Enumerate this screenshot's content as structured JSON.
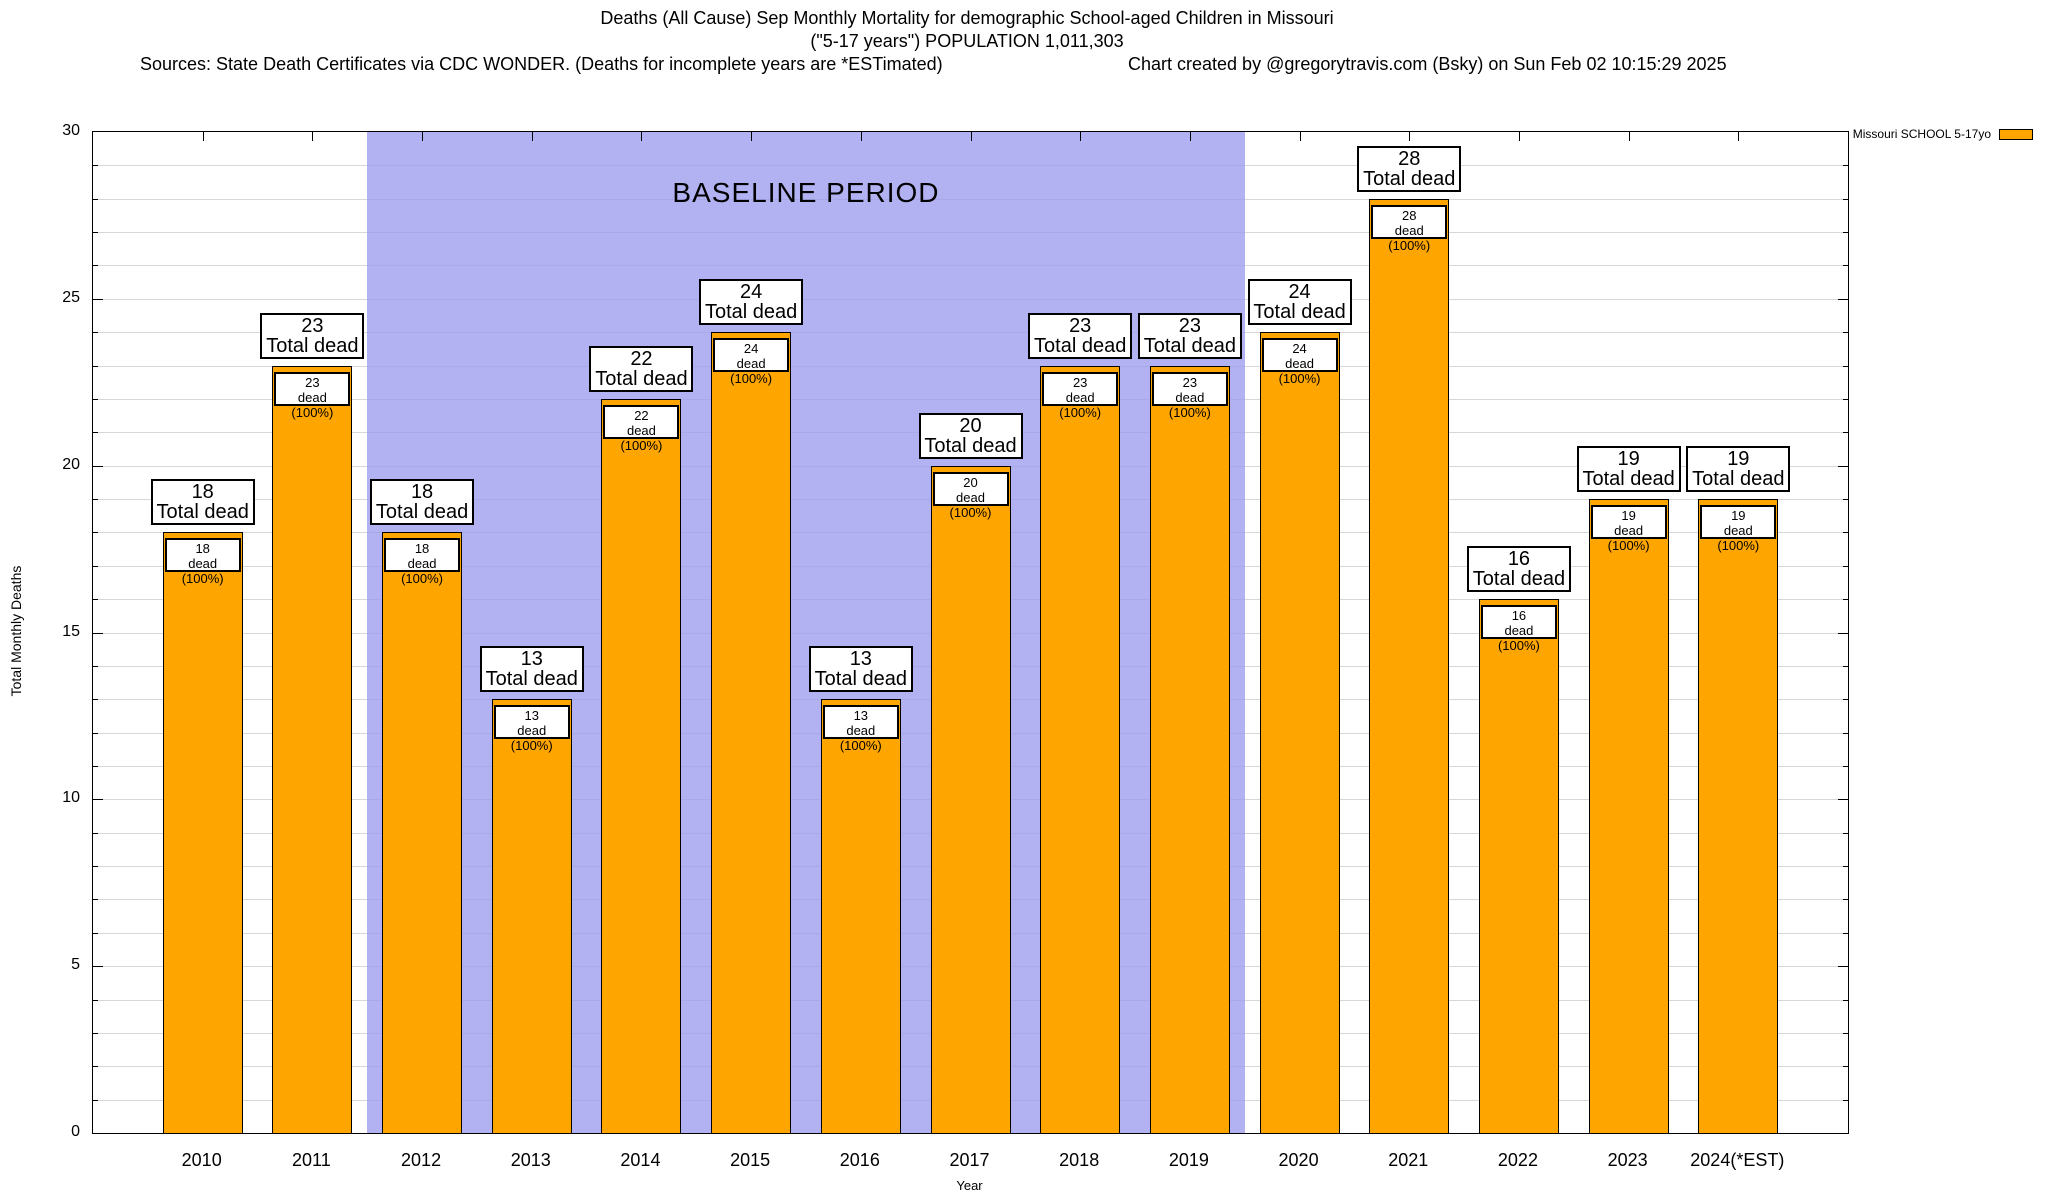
{
  "header": {
    "title_line1": "Deaths (All Cause) Sep Monthly Mortality for demographic School-aged Children in Missouri",
    "title_line2": "(\"5-17 years\") POPULATION 1,011,303",
    "sources": "Sources: State Death Certificates via CDC WONDER. (Deaths for incomplete years are *ESTimated)",
    "credit": "Chart created by @gregorytravis.com (Bsky) on Sun Feb 02 10:15:29 2025"
  },
  "legend": {
    "label": "Missouri SCHOOL 5-17yo",
    "position": "top-right"
  },
  "chart_data": {
    "type": "bar",
    "title": "Deaths (All Cause) Sep Monthly Mortality for demographic School-aged Children in Missouri",
    "xlabel": "Year",
    "ylabel": "Total Monthly Deaths",
    "ylim": [
      0,
      30
    ],
    "yticks": [
      0,
      5,
      10,
      15,
      20,
      25,
      30
    ],
    "grid": "horizontal minor gridlines every 1 unit",
    "legend_position": "top-right outside plot",
    "categories": [
      "2010",
      "2011",
      "2012",
      "2013",
      "2014",
      "2015",
      "2016",
      "2017",
      "2018",
      "2019",
      "2020",
      "2021",
      "2022",
      "2023",
      "2024(*EST)"
    ],
    "values": [
      18,
      23,
      18,
      13,
      22,
      24,
      13,
      20,
      23,
      23,
      24,
      28,
      16,
      19,
      19
    ],
    "series": [
      {
        "name": "Missouri SCHOOL 5-17yo",
        "values": [
          18,
          23,
          18,
          13,
          22,
          24,
          13,
          20,
          23,
          23,
          24,
          28,
          16,
          19,
          19
        ]
      }
    ],
    "bar_top_label_suffix": "Total dead",
    "bar_inner_label_suffix": "dead (100%)",
    "baseline": {
      "label": "BASELINE PERIOD",
      "from": "2012",
      "to": "2019"
    },
    "colors": {
      "bar": "#ffa500",
      "bar_border": "#000000",
      "baseline_region": "#9c9cee",
      "grid": "#d7d7d7",
      "text": "#000000"
    }
  }
}
